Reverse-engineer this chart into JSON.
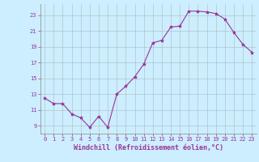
{
  "x_values": [
    0,
    1,
    2,
    3,
    4,
    5,
    6,
    7,
    8,
    9,
    10,
    11,
    12,
    13,
    14,
    15,
    16,
    17,
    18,
    19,
    20,
    21,
    22,
    23
  ],
  "y_values": [
    12.5,
    11.8,
    11.8,
    10.5,
    10.0,
    8.8,
    10.2,
    8.8,
    13.0,
    14.0,
    15.2,
    16.8,
    19.5,
    19.8,
    21.5,
    21.6,
    23.5,
    23.5,
    23.4,
    23.2,
    22.5,
    20.8,
    19.3,
    18.3
  ],
  "line_color": "#993399",
  "marker": "*",
  "marker_size": 3,
  "background_color": "#cceeff",
  "grid_color": "#aabbbb",
  "xlabel": "Windchill (Refroidissement éolien,°C)",
  "xlim": [
    -0.5,
    23.5
  ],
  "ylim": [
    8.0,
    24.4
  ],
  "yticks": [
    9,
    11,
    13,
    15,
    17,
    19,
    21,
    23
  ],
  "xticks": [
    0,
    1,
    2,
    3,
    4,
    5,
    6,
    7,
    8,
    9,
    10,
    11,
    12,
    13,
    14,
    15,
    16,
    17,
    18,
    19,
    20,
    21,
    22,
    23
  ],
  "tick_color": "#993399",
  "tick_fontsize": 5.0,
  "xlabel_fontsize": 6.0,
  "axis_border_color": "#888888"
}
